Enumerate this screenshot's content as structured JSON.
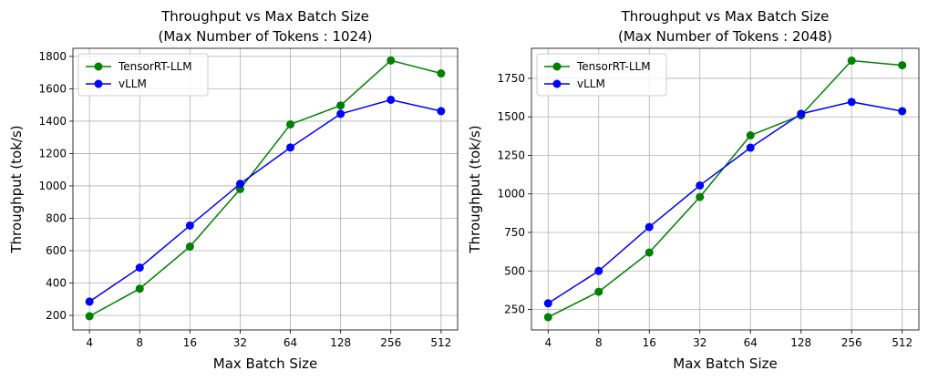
{
  "chart_data": [
    {
      "type": "line",
      "title": "Throughput vs Max Batch Size",
      "subtitle": "(Max Number of Tokens : 1024)",
      "xlabel": "Max Batch Size",
      "ylabel": "Throughput (tok/s)",
      "categories": [
        "4",
        "8",
        "16",
        "32",
        "64",
        "128",
        "256",
        "512"
      ],
      "ylim": [
        110,
        1850
      ],
      "yticks": [
        200,
        400,
        600,
        800,
        1000,
        1200,
        1400,
        1600,
        1800
      ],
      "grid": true,
      "legend": "upper-left",
      "series": [
        {
          "name": "TensorRT-LLM",
          "color": "#008000",
          "values": [
            195,
            365,
            625,
            980,
            1380,
            1497,
            1775,
            1695
          ]
        },
        {
          "name": "vLLM",
          "color": "#0000ff",
          "values": [
            285,
            495,
            755,
            1013,
            1237,
            1445,
            1532,
            1462
          ]
        }
      ]
    },
    {
      "type": "line",
      "title": "Throughput vs Max Batch Size",
      "subtitle": "(Max Number of Tokens : 2048)",
      "xlabel": "Max Batch Size",
      "ylabel": "Throughput (tok/s)",
      "categories": [
        "4",
        "8",
        "16",
        "32",
        "64",
        "128",
        "256",
        "512"
      ],
      "ylim": [
        117,
        1945
      ],
      "yticks": [
        250,
        500,
        750,
        1000,
        1250,
        1500,
        1750
      ],
      "grid": true,
      "legend": "upper-left",
      "series": [
        {
          "name": "TensorRT-LLM",
          "color": "#008000",
          "values": [
            200,
            365,
            620,
            980,
            1380,
            1510,
            1865,
            1835
          ]
        },
        {
          "name": "vLLM",
          "color": "#0000ff",
          "values": [
            290,
            500,
            785,
            1055,
            1300,
            1520,
            1597,
            1537
          ]
        }
      ]
    }
  ]
}
